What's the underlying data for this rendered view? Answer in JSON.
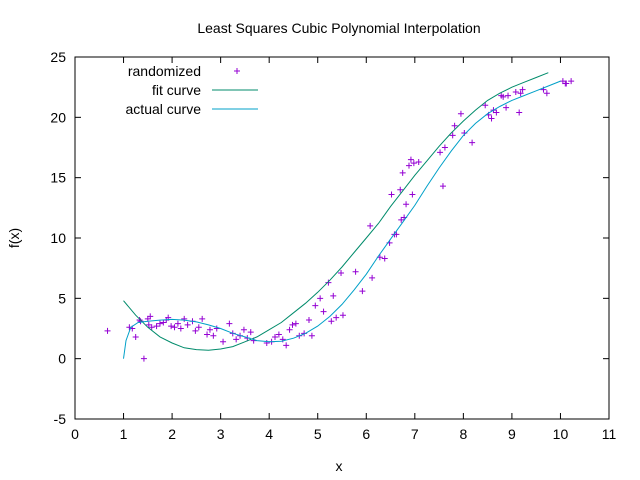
{
  "chart_data": {
    "type": "scatter",
    "title": "Least Squares Cubic Polynomial Interpolation",
    "xlabel": "x",
    "ylabel": "f(x)",
    "xlim": [
      0,
      11
    ],
    "ylim": [
      -5,
      25
    ],
    "xticks": [
      "0",
      "1",
      "2",
      "3",
      "4",
      "5",
      "6",
      "7",
      "8",
      "9",
      "10",
      "11"
    ],
    "yticks": [
      "-5",
      "0",
      "5",
      "10",
      "15",
      "20",
      "25"
    ],
    "grid": false,
    "legend_position": "top-left",
    "series": [
      {
        "name": "randomized",
        "kind": "points",
        "color": "#9400d3",
        "x": [
          0.67,
          1.12,
          1.18,
          1.25,
          1.33,
          1.35,
          1.42,
          1.5,
          1.52,
          1.55,
          1.58,
          1.68,
          1.75,
          1.82,
          1.88,
          1.92,
          1.98,
          2.05,
          2.12,
          2.18,
          2.25,
          2.32,
          2.42,
          2.48,
          2.55,
          2.62,
          2.72,
          2.78,
          2.85,
          2.92,
          3.05,
          3.18,
          3.25,
          3.32,
          3.4,
          3.48,
          3.55,
          3.62,
          3.68,
          3.95,
          4.05,
          4.12,
          4.2,
          4.28,
          4.35,
          4.42,
          4.48,
          4.55,
          4.62,
          4.72,
          4.82,
          4.88,
          4.95,
          5.05,
          5.12,
          5.22,
          5.28,
          5.32,
          5.38,
          5.48,
          5.52,
          5.78,
          5.92,
          6.08,
          6.12,
          6.28,
          6.38,
          6.48,
          6.52,
          6.58,
          6.62,
          6.7,
          6.72,
          6.75,
          6.78,
          6.82,
          6.88,
          6.92,
          6.95,
          6.98,
          7.08,
          7.52,
          7.58,
          7.62,
          7.78,
          7.82,
          7.95,
          8.02,
          8.18,
          8.45,
          8.52,
          8.58,
          8.62,
          8.68,
          8.78,
          8.82,
          8.88,
          8.92,
          9.08,
          9.15,
          9.18,
          9.22,
          9.65,
          9.72,
          10.05,
          10.1,
          10.12,
          10.22
        ],
        "y": [
          2.3,
          2.6,
          2.5,
          1.8,
          3.2,
          3.1,
          0.0,
          3.3,
          2.8,
          3.5,
          2.6,
          2.7,
          2.9,
          3.0,
          3.2,
          3.4,
          2.7,
          2.6,
          2.9,
          2.5,
          3.3,
          2.8,
          3.1,
          2.3,
          2.6,
          3.3,
          2.0,
          2.4,
          1.9,
          2.5,
          1.4,
          2.9,
          2.1,
          1.6,
          1.9,
          2.4,
          1.7,
          2.2,
          1.5,
          1.3,
          1.4,
          1.8,
          2.0,
          1.6,
          1.1,
          2.4,
          2.8,
          2.9,
          1.9,
          2.1,
          3.2,
          1.9,
          4.4,
          5.0,
          3.9,
          6.3,
          3.1,
          5.2,
          3.4,
          7.1,
          3.6,
          7.2,
          5.6,
          11.0,
          6.7,
          8.4,
          8.3,
          9.6,
          13.6,
          10.3,
          10.3,
          14.0,
          11.5,
          15.4,
          11.7,
          12.8,
          16.0,
          16.5,
          13.6,
          16.2,
          16.3,
          17.1,
          14.3,
          17.5,
          18.5,
          19.3,
          20.3,
          18.7,
          17.9,
          21.0,
          20.2,
          19.9,
          20.6,
          20.4,
          21.8,
          21.7,
          20.8,
          21.8,
          22.1,
          20.4,
          22.0,
          22.3,
          22.3,
          22.0,
          23.0,
          22.8,
          22.8,
          23.0
        ]
      },
      {
        "name": "fit curve",
        "kind": "line",
        "color": "#008b6b",
        "x": [
          1.0,
          1.25,
          1.5,
          1.75,
          2.0,
          2.25,
          2.5,
          2.75,
          3.0,
          3.25,
          3.5,
          3.75,
          4.0,
          4.25,
          4.5,
          4.75,
          5.0,
          5.25,
          5.5,
          5.75,
          6.0,
          6.25,
          6.5,
          6.75,
          7.0,
          7.25,
          7.5,
          7.75,
          8.0,
          8.25,
          8.5,
          8.75,
          9.0,
          9.25,
          9.5,
          9.75
        ],
        "y": [
          4.8,
          3.6,
          2.6,
          1.8,
          1.3,
          0.9,
          0.75,
          0.7,
          0.8,
          1.0,
          1.4,
          1.8,
          2.4,
          3.0,
          3.8,
          4.6,
          5.5,
          6.5,
          7.6,
          8.8,
          10.0,
          11.2,
          12.6,
          13.9,
          15.2,
          16.4,
          17.6,
          18.7,
          19.7,
          20.6,
          21.4,
          22.0,
          22.5,
          22.9,
          23.3,
          23.7
        ]
      },
      {
        "name": "actual curve",
        "kind": "line",
        "color": "#00a0c8",
        "x": [
          1.0,
          1.05,
          1.15,
          1.3,
          1.5,
          1.75,
          2.0,
          2.25,
          2.5,
          2.75,
          3.0,
          3.25,
          3.5,
          3.75,
          4.0,
          4.25,
          4.5,
          4.75,
          5.0,
          5.25,
          5.5,
          5.75,
          6.0,
          6.25,
          6.5,
          6.75,
          7.0,
          7.25,
          7.5,
          7.75,
          8.0,
          8.25,
          8.5,
          8.75,
          9.0,
          9.25,
          9.5,
          9.75,
          10.0
        ],
        "y": [
          0.0,
          1.5,
          2.6,
          3.0,
          3.1,
          3.2,
          3.25,
          3.2,
          3.05,
          2.8,
          2.5,
          2.1,
          1.8,
          1.5,
          1.4,
          1.45,
          1.7,
          2.1,
          2.7,
          3.5,
          4.5,
          5.7,
          7.0,
          8.5,
          9.9,
          11.3,
          12.7,
          14.3,
          15.8,
          17.2,
          18.5,
          19.5,
          20.3,
          20.9,
          21.4,
          21.8,
          22.2,
          22.6,
          23.0
        ]
      }
    ]
  }
}
